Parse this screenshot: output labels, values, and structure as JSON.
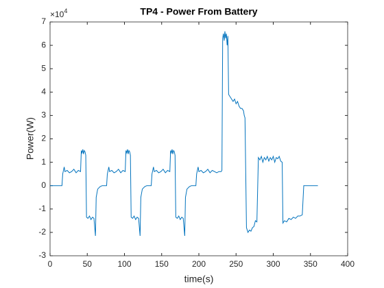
{
  "chart_data": {
    "type": "line",
    "title": "TP4 - Power From Battery",
    "x_label": "time(s)",
    "y_label": "Power(W)",
    "y_exponent": {
      "base": "×10",
      "power": "4"
    },
    "xlim": [
      0,
      400
    ],
    "xticks": [
      0,
      50,
      100,
      150,
      200,
      250,
      300,
      350,
      400
    ],
    "ylim": [
      -3,
      7
    ],
    "yticks": [
      -3,
      -2,
      -1,
      0,
      1,
      2,
      3,
      4,
      5,
      6,
      7
    ],
    "grid": false,
    "series": [
      {
        "name": "Power",
        "color": "#0072bd",
        "x": [
          0,
          16,
          17,
          19,
          20,
          23,
          26,
          29,
          32,
          35,
          38,
          41,
          42,
          43,
          44,
          45,
          46,
          47,
          48,
          49,
          51,
          53,
          55,
          57,
          59,
          61,
          62,
          64,
          67,
          70,
          76,
          77,
          79,
          80,
          83,
          86,
          89,
          92,
          95,
          98,
          101,
          102,
          103,
          104,
          105,
          106,
          107,
          108,
          109,
          111,
          113,
          115,
          117,
          119,
          121,
          122,
          124,
          127,
          130,
          136,
          137,
          139,
          140,
          143,
          146,
          149,
          152,
          155,
          158,
          161,
          162,
          163,
          164,
          165,
          166,
          167,
          168,
          169,
          171,
          173,
          175,
          177,
          179,
          181,
          182,
          184,
          187,
          190,
          196,
          197,
          199,
          200,
          203,
          206,
          209,
          212,
          215,
          218,
          221,
          224,
          227,
          230,
          231,
          232,
          233,
          234,
          235,
          236,
          237,
          238,
          239,
          240,
          242,
          244,
          246,
          248,
          250,
          252,
          254,
          256,
          258,
          260,
          261,
          262,
          264,
          266,
          268,
          270,
          272,
          274,
          276,
          278,
          280,
          282,
          284,
          286,
          288,
          290,
          292,
          294,
          296,
          298,
          300,
          302,
          304,
          306,
          308,
          310,
          312,
          313,
          315,
          318,
          321,
          324,
          327,
          330,
          333,
          336,
          339,
          341,
          360
        ],
        "values": [
          0,
          0,
          0.5,
          0.8,
          0.6,
          0.65,
          0.55,
          0.6,
          0.7,
          0.55,
          0.65,
          0.6,
          1.5,
          1.4,
          1.55,
          1.35,
          1.5,
          1.45,
          1.3,
          -1.35,
          -1.4,
          -1.3,
          -1.45,
          -1.35,
          -1.4,
          -2.15,
          -0.5,
          -0.15,
          -0.05,
          0,
          0,
          0.5,
          0.8,
          0.6,
          0.65,
          0.55,
          0.6,
          0.7,
          0.55,
          0.65,
          0.6,
          1.5,
          1.4,
          1.55,
          1.35,
          1.5,
          1.45,
          1.3,
          -1.35,
          -1.4,
          -1.3,
          -1.45,
          -1.35,
          -1.4,
          -2.15,
          -0.5,
          -0.15,
          -0.05,
          0,
          0,
          0.5,
          0.8,
          0.6,
          0.65,
          0.55,
          0.6,
          0.7,
          0.55,
          0.65,
          0.6,
          1.5,
          1.4,
          1.55,
          1.35,
          1.5,
          1.45,
          1.3,
          -1.35,
          -1.4,
          -1.3,
          -1.45,
          -1.35,
          -1.4,
          -2.15,
          -0.5,
          -0.15,
          -0.05,
          0,
          0,
          0.5,
          0.8,
          0.6,
          0.65,
          0.55,
          0.6,
          0.7,
          0.55,
          0.65,
          0.6,
          0.55,
          0.6,
          0.6,
          0.65,
          6.3,
          6.5,
          6.2,
          6.6,
          6.3,
          6.5,
          6.0,
          6.4,
          3.9,
          3.8,
          3.7,
          3.6,
          3.7,
          3.5,
          3.6,
          3.4,
          3.3,
          3.3,
          3.2,
          3.0,
          2.9,
          -1.8,
          -2.0,
          -1.9,
          -1.95,
          -1.8,
          -1.75,
          -1.5,
          -1.55,
          1.2,
          1.1,
          1.25,
          1.0,
          1.2,
          1.1,
          1.25,
          1.05,
          1.2,
          1.1,
          1.25,
          1.0,
          1.2,
          1.15,
          1.25,
          1.05,
          1.0,
          -1.6,
          -1.5,
          -1.55,
          -1.4,
          -1.45,
          -1.35,
          -1.4,
          -1.3,
          -1.3,
          -1.25,
          0,
          0
        ]
      }
    ]
  }
}
